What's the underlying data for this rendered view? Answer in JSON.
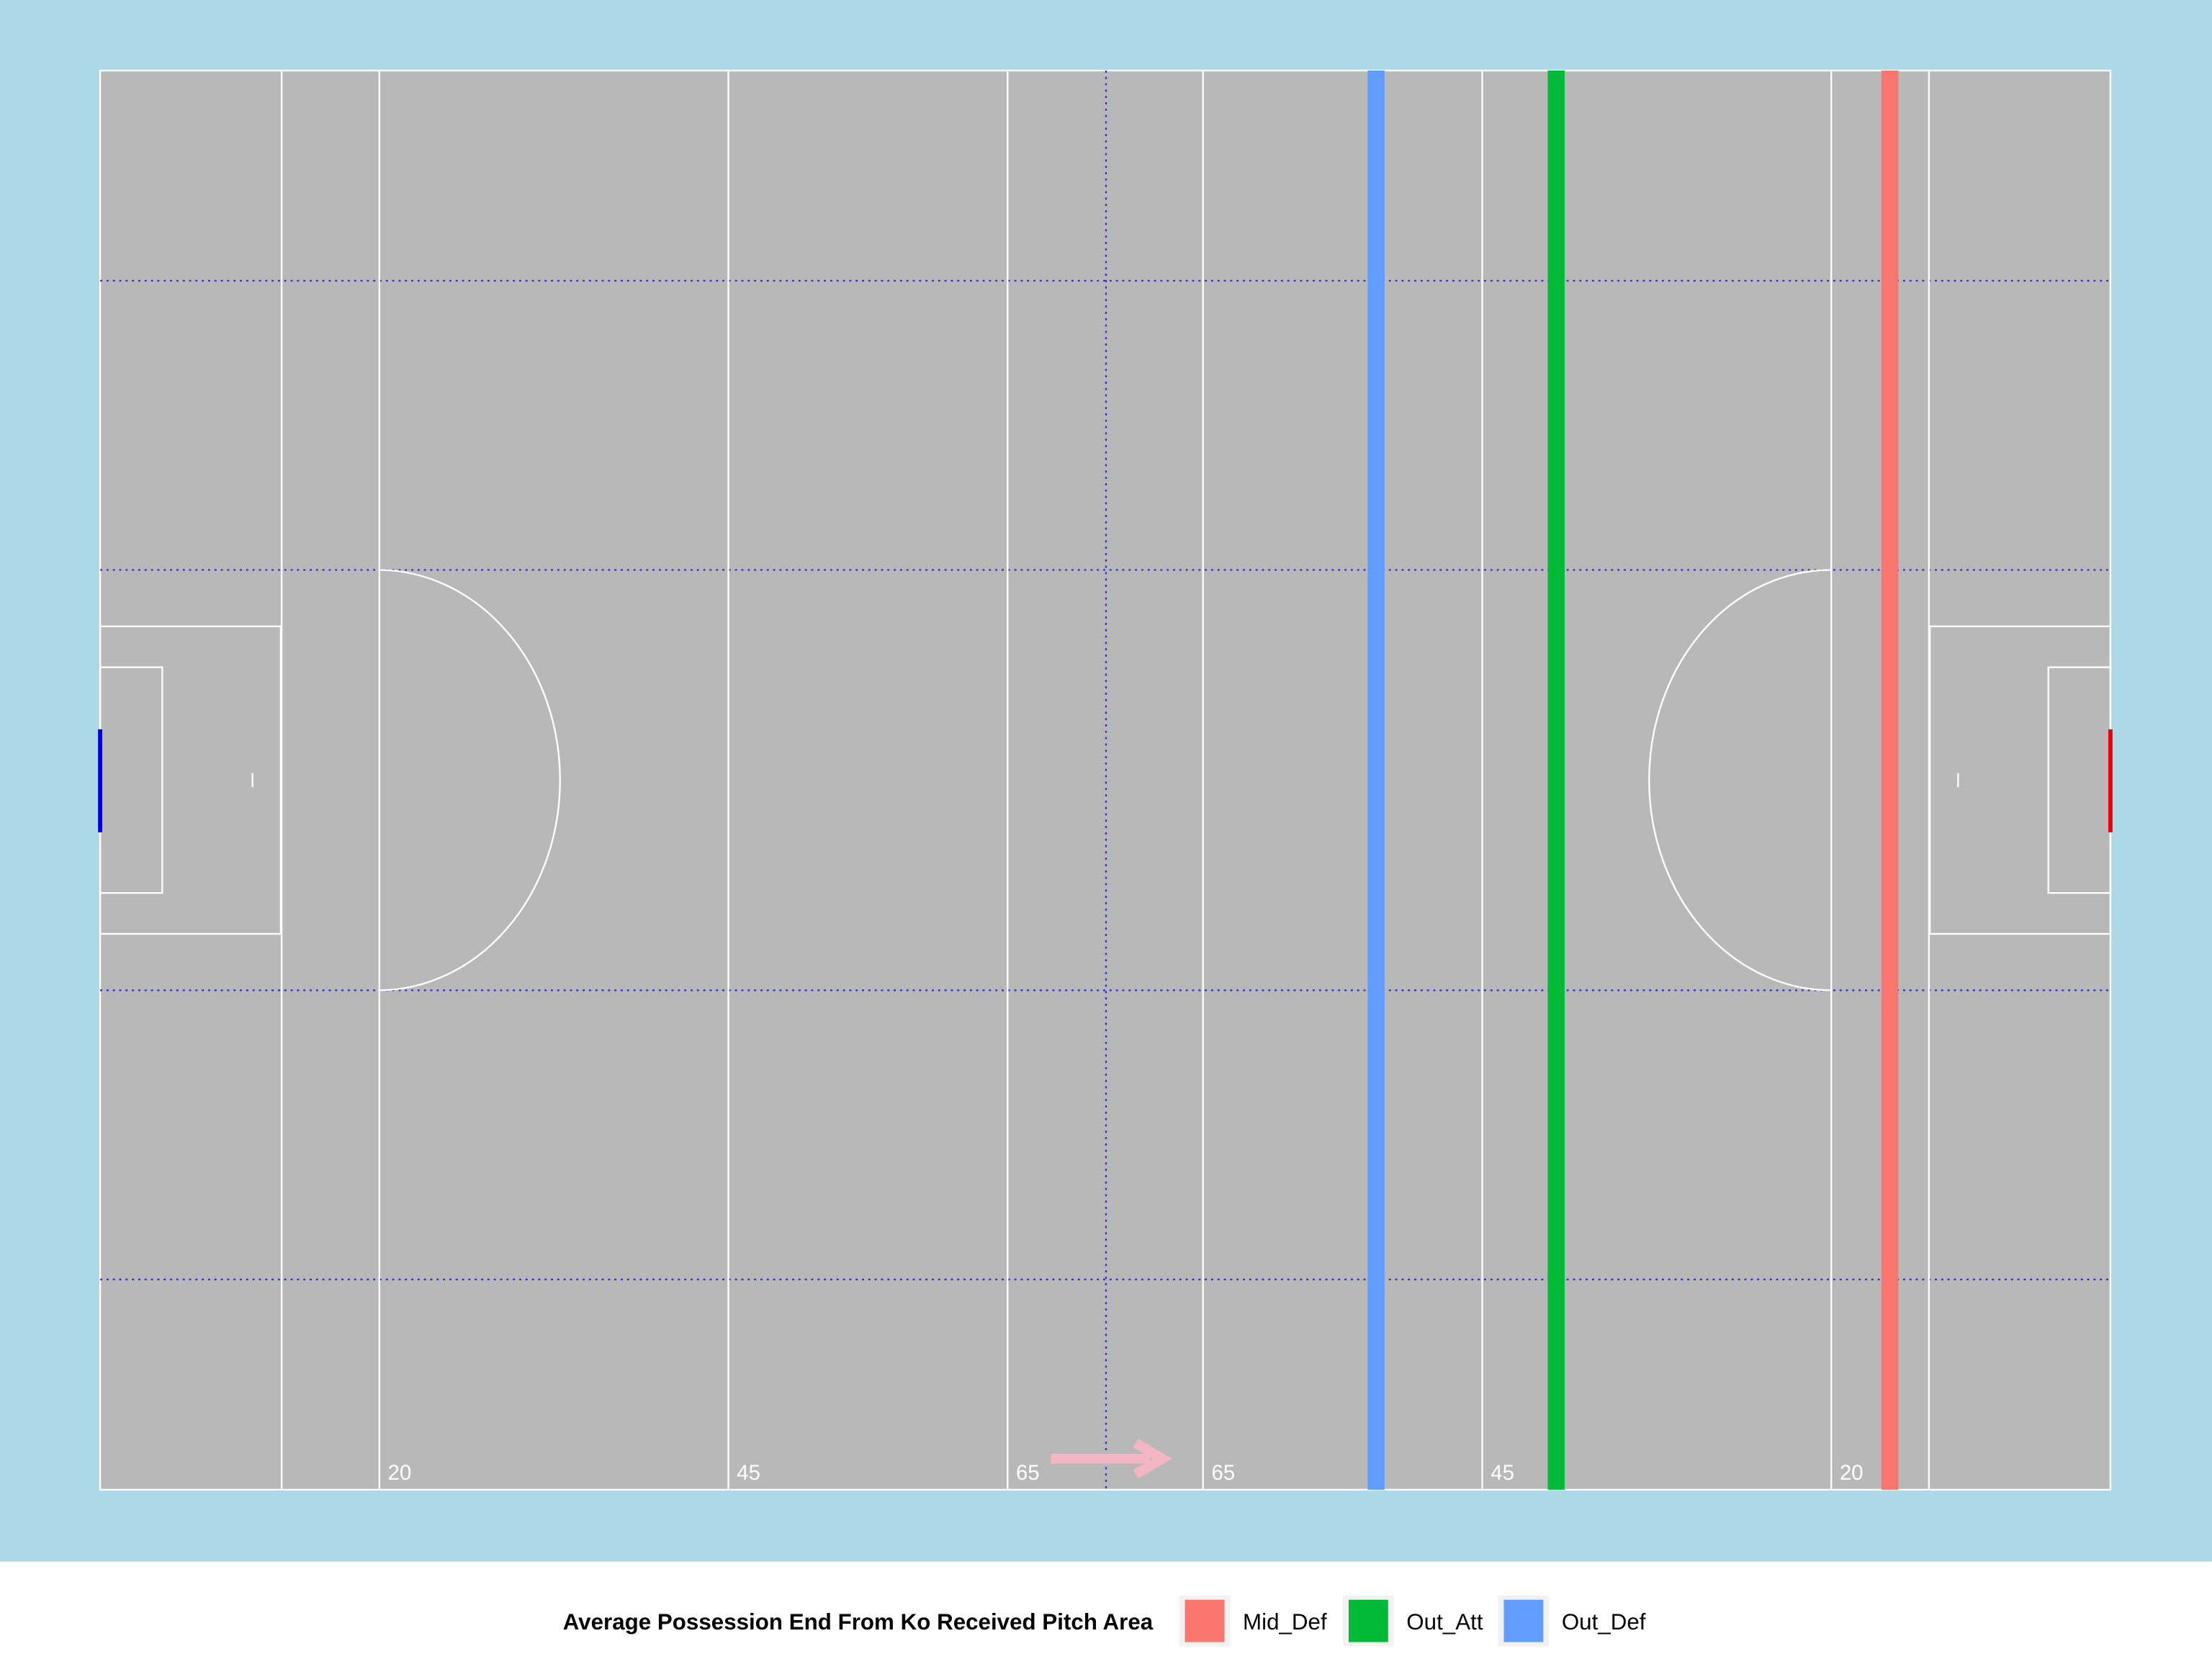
{
  "chart_data": {
    "type": "vline",
    "series": [
      {
        "name": "Mid_Def",
        "color": "#F8766D",
        "values": [
          128.2
        ]
      },
      {
        "name": "Out_Att",
        "color": "#00BA38",
        "values": [
          104.3
        ]
      },
      {
        "name": "Out_Def",
        "color": "#619CFF",
        "values": [
          91.4
        ]
      }
    ],
    "xlim": [
      0,
      144
    ],
    "legend_title": "Average Possession End From Ko Received Pitch Area",
    "pitch_labels": [
      "20",
      "45",
      "65",
      "65",
      "45",
      "20"
    ]
  }
}
